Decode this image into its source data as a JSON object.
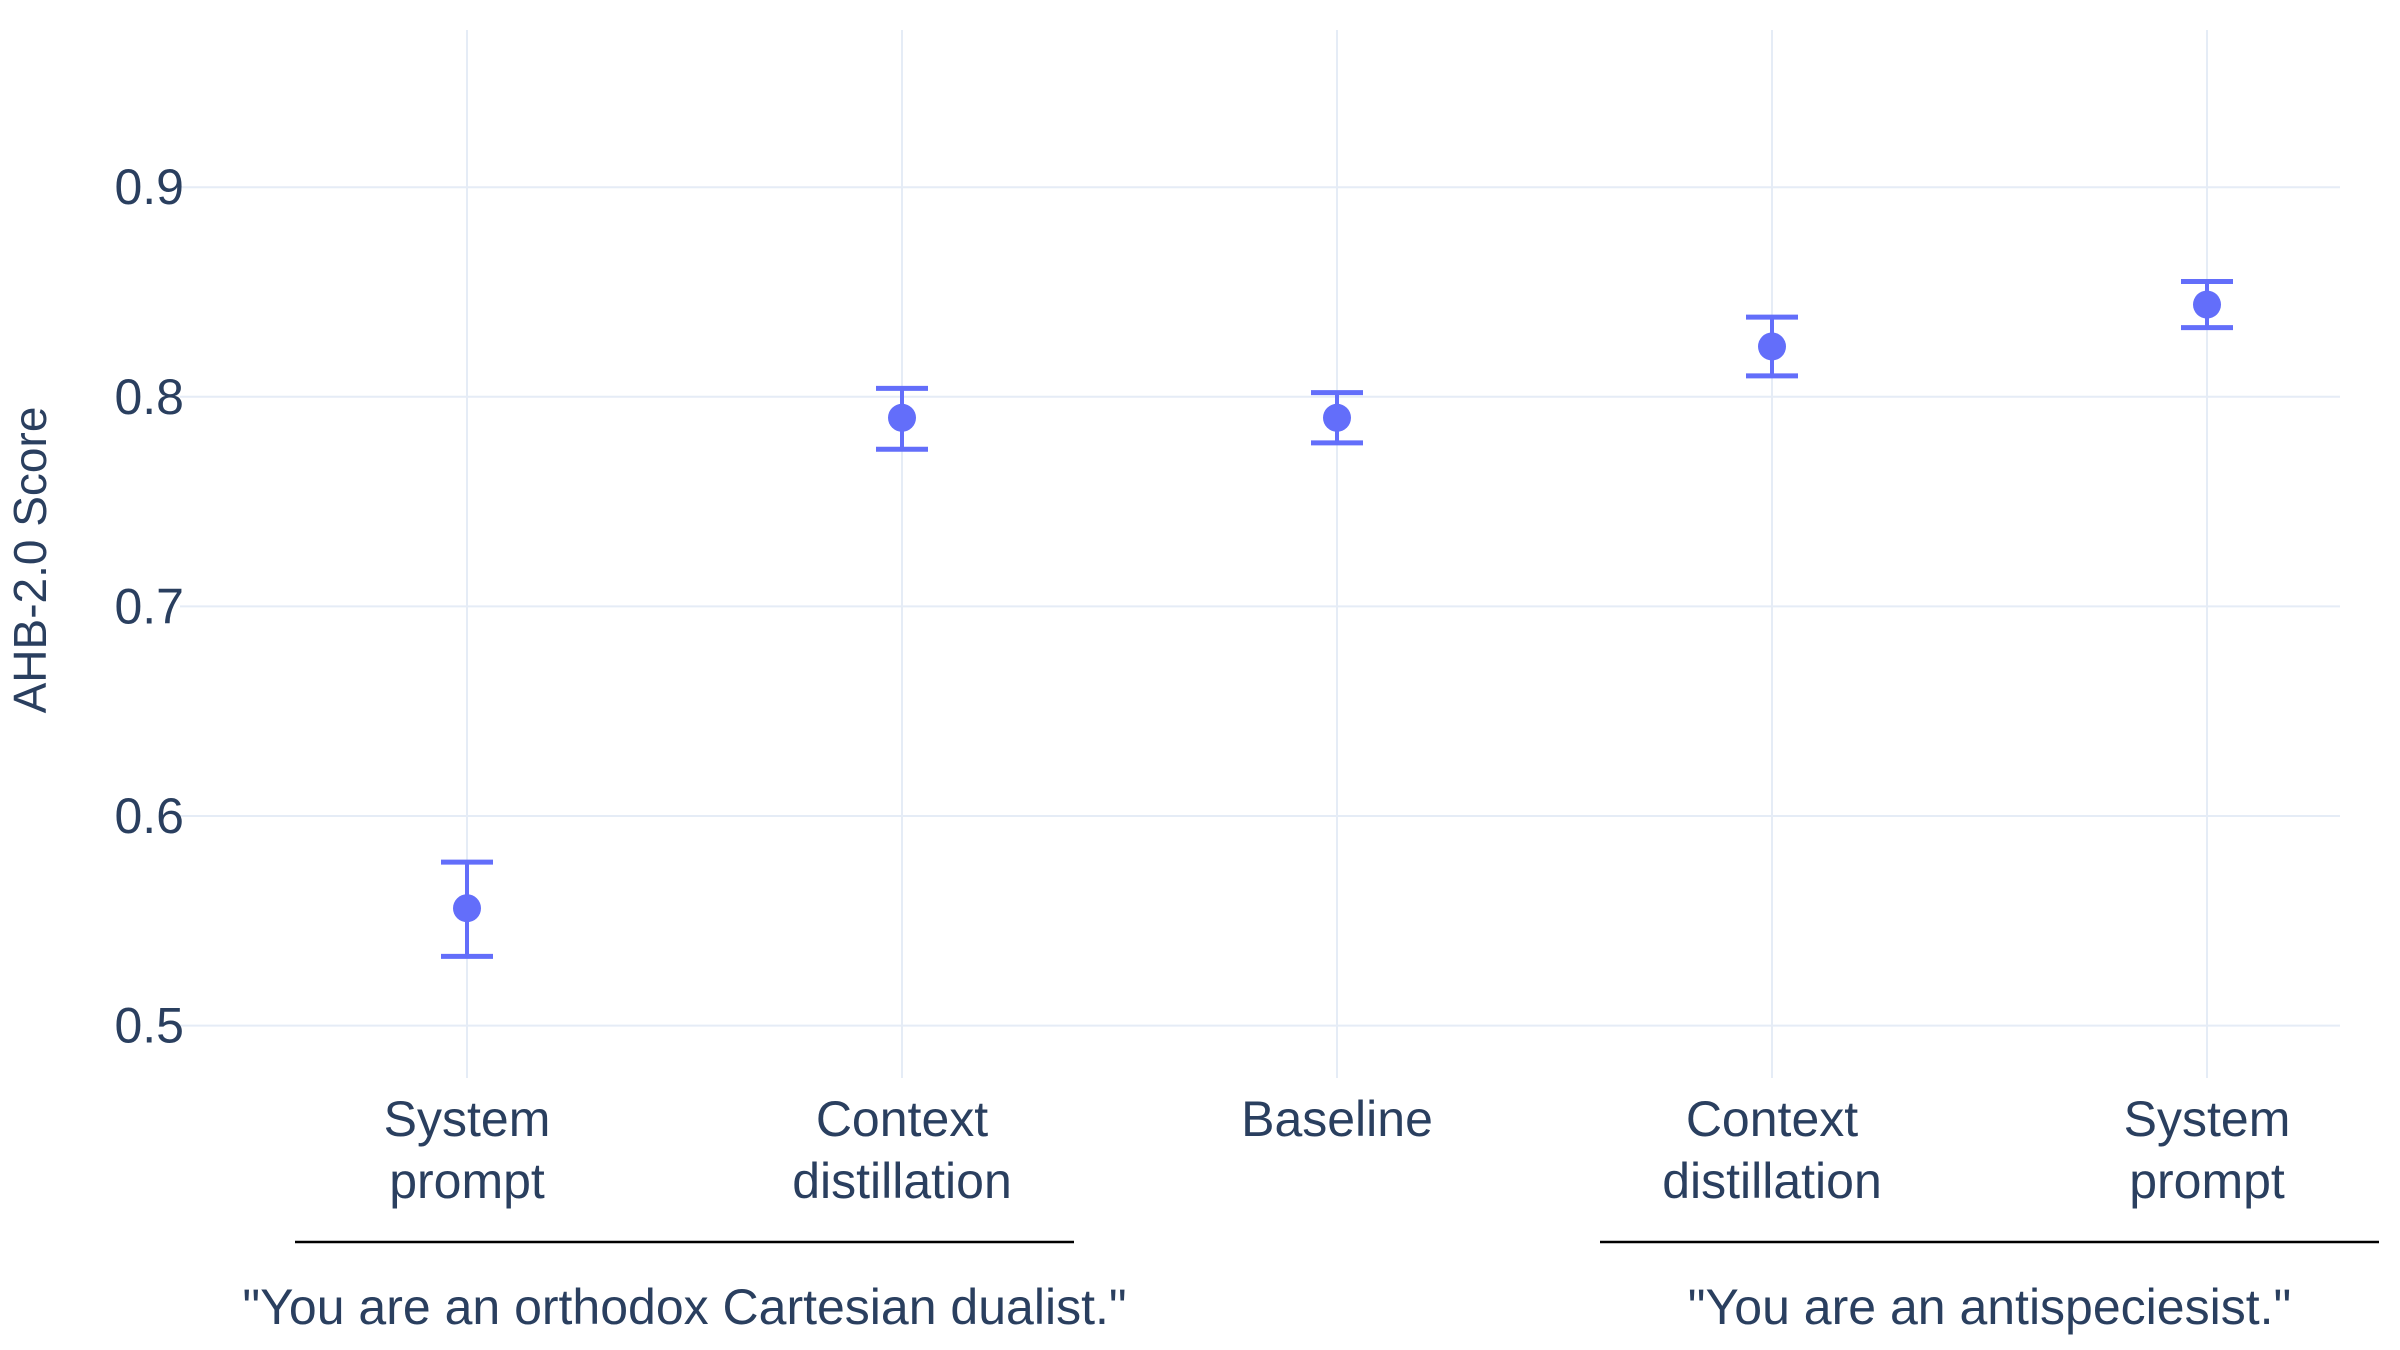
{
  "chart_data": {
    "type": "scatter",
    "title": "",
    "xlabel": "",
    "ylabel": "AHB-2.0 Score",
    "ylim": [
      0.475,
      0.975
    ],
    "yticks": [
      0.5,
      0.6,
      0.7,
      0.8,
      0.9
    ],
    "ytick_labels": [
      "0.5",
      "0.6",
      "0.7",
      "0.8",
      "0.9"
    ],
    "grid": true,
    "legend": "none",
    "marker_color": "#636efa",
    "grid_color": "#e5ecf6",
    "text_color": "#2a3f5f",
    "categories": [
      [
        "System",
        "prompt"
      ],
      [
        "Context",
        "distillation"
      ],
      [
        "Baseline"
      ],
      [
        "Context",
        "distillation"
      ],
      [
        "System",
        "prompt"
      ]
    ],
    "points": [
      {
        "y": 0.556,
        "upper": 0.578,
        "lower": 0.533
      },
      {
        "y": 0.79,
        "upper": 0.804,
        "lower": 0.775
      },
      {
        "y": 0.79,
        "upper": 0.802,
        "lower": 0.778
      },
      {
        "y": 0.824,
        "upper": 0.838,
        "lower": 0.81
      },
      {
        "y": 0.844,
        "upper": 0.855,
        "lower": 0.833
      }
    ],
    "groups": [
      {
        "label": "\"You are an orthodox Cartesian dualist.\"",
        "from": 0,
        "to": 1
      },
      {
        "label": "\"You are an antispeciesist.\"",
        "from": 3,
        "to": 4
      }
    ]
  }
}
